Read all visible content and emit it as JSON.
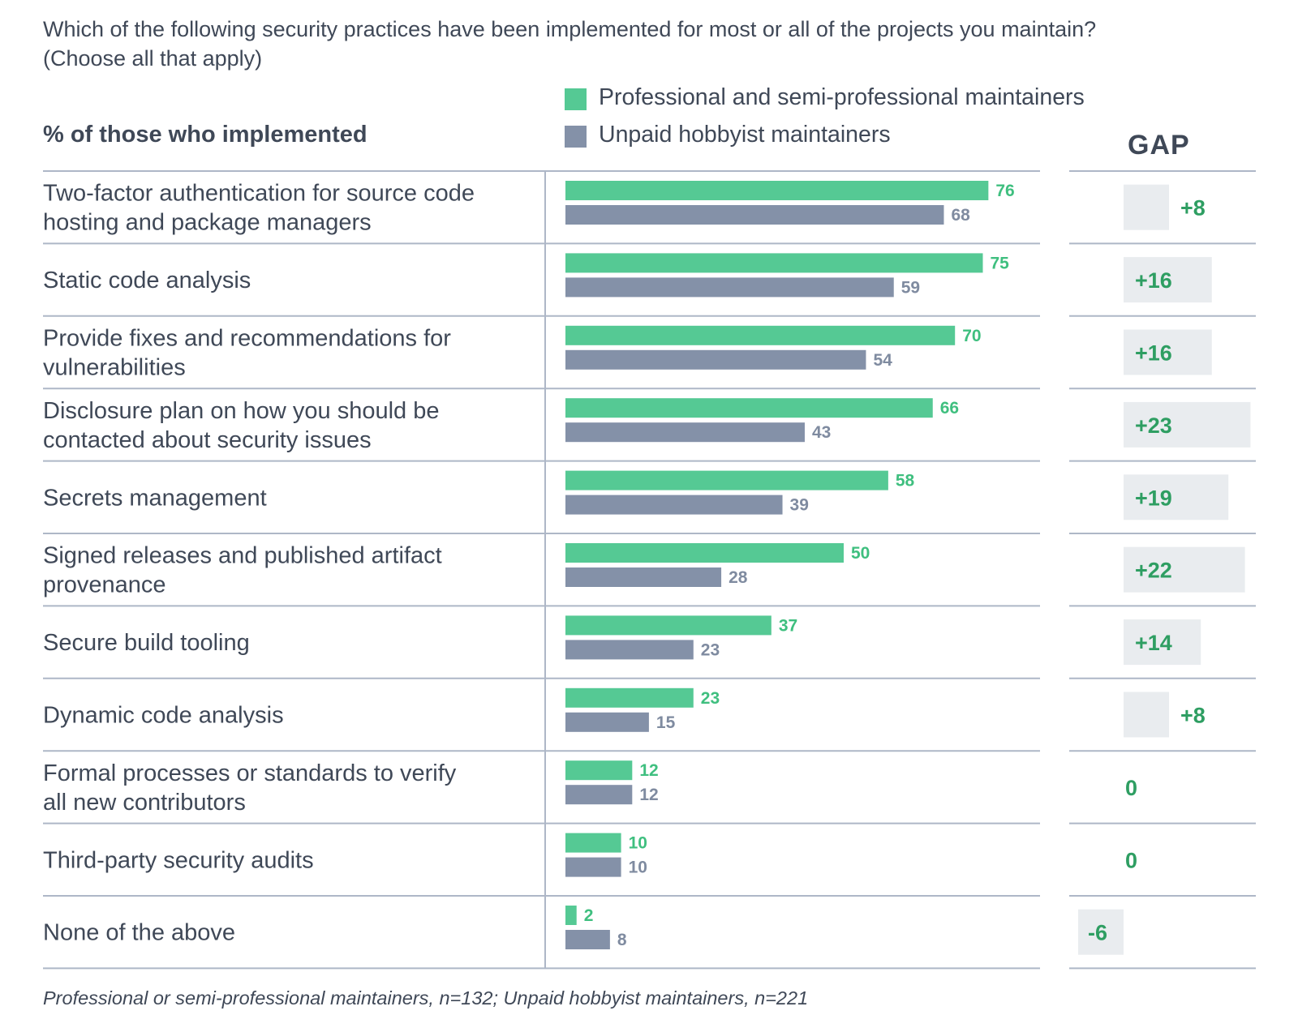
{
  "question": {
    "line1": "Which of the following security practices have been implemented for most or all of the projects you maintain?",
    "line2": "(Choose all that apply)"
  },
  "column_header": "% of those who implemented",
  "gap_header": "GAP",
  "footnote": "Professional or semi-professional maintainers, n=132; Unpaid hobbyist maintainers, n=221",
  "colors": {
    "professional": "#55c994",
    "hobbyist": "#8491a8",
    "professional_text": "#3fbf7f",
    "hobbyist_text": "#7f8ba0",
    "gap_text": "#2e9e62",
    "gap_box": "#e9ecef",
    "rule": "#aeb7c7"
  },
  "chart_data": {
    "type": "bar",
    "orientation": "horizontal",
    "categories": [
      [
        "Two-factor authentication for source code",
        "hosting and package managers"
      ],
      [
        "Static code analysis"
      ],
      [
        "Provide fixes and recommendations for",
        "vulnerabilities"
      ],
      [
        "Disclosure plan on how you should be",
        "contacted about security issues"
      ],
      [
        "Secrets management"
      ],
      [
        "Signed releases and published artifact",
        "provenance"
      ],
      [
        "Secure build tooling"
      ],
      [
        "Dynamic code analysis"
      ],
      [
        "Formal processes or standards to verify",
        "all new contributors"
      ],
      [
        "Third-party security audits"
      ],
      [
        "None of the above"
      ]
    ],
    "series": [
      {
        "name": "Professional and semi-professional maintainers",
        "values": [
          76,
          75,
          70,
          66,
          58,
          50,
          37,
          23,
          12,
          10,
          2
        ]
      },
      {
        "name": "Unpaid hobbyist maintainers",
        "values": [
          68,
          59,
          54,
          43,
          39,
          28,
          23,
          15,
          12,
          10,
          8
        ]
      }
    ],
    "gap": {
      "labels": [
        "+8",
        "+16",
        "+16",
        "+23",
        "+19",
        "+22",
        "+14",
        "+8",
        "0",
        "0",
        "-6"
      ],
      "values": [
        8,
        16,
        16,
        23,
        19,
        22,
        14,
        8,
        0,
        0,
        -6
      ]
    },
    "xlim": [
      0,
      100
    ],
    "legend_position": "top"
  }
}
